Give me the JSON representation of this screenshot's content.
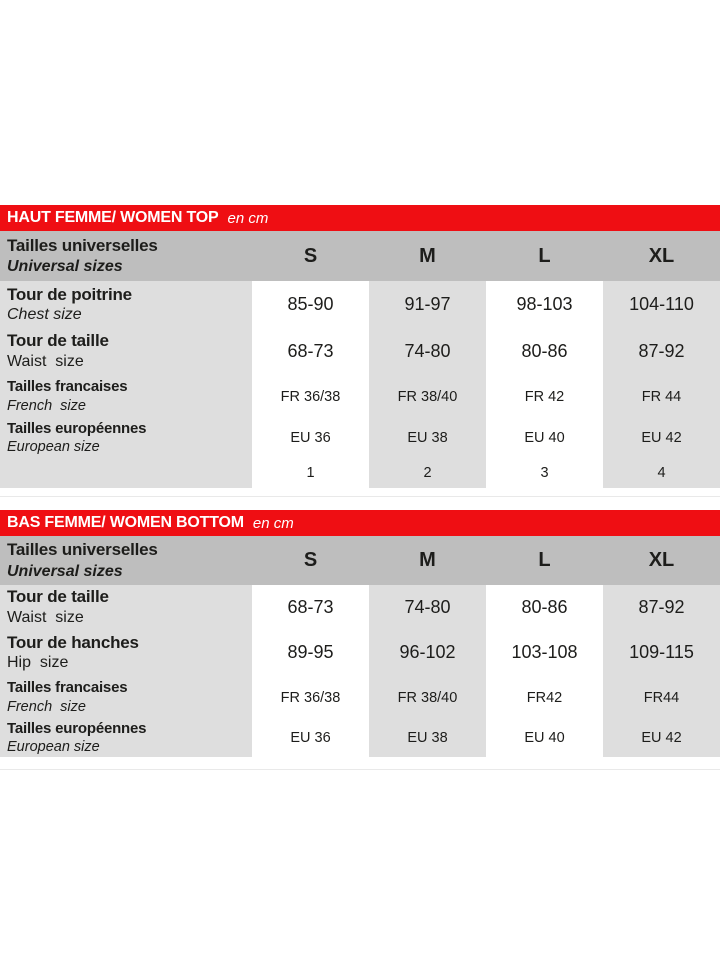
{
  "colors": {
    "red_bar": "#ef0e13",
    "header_gray": "#bebebe",
    "cell_gray": "#dedede",
    "text": "#1d1d1b"
  },
  "tables": [
    {
      "title": "HAUT FEMME/ WOMEN TOP",
      "unit": "en cm",
      "header": {
        "label_fr": "Tailles universelles",
        "label_en": "Universal sizes",
        "sizes": [
          "S",
          "M",
          "L",
          "XL"
        ]
      },
      "rows": [
        {
          "label_fr": "Tour de poitrine",
          "label_en": "Chest size",
          "values": [
            "85-90",
            "91-97",
            "98-103",
            "104-110"
          ]
        },
        {
          "label_fr": "Tour de taille",
          "label_en": "Waist  size",
          "values": [
            "68-73",
            "74-80",
            "80-86",
            "87-92"
          ]
        },
        {
          "label_fr": "Tailles francaises",
          "label_en": "French  size",
          "values": [
            "FR 36/38",
            "FR 38/40",
            "FR 42",
            "FR 44"
          ]
        },
        {
          "label_fr": "Tailles européennes",
          "label_en": "European size",
          "values": [
            "EU 36",
            "EU 38",
            "EU 40",
            "EU 42"
          ]
        },
        {
          "label_fr": "",
          "label_en": "",
          "values": [
            "1",
            "2",
            "3",
            "4"
          ]
        }
      ]
    },
    {
      "title": "BAS FEMME/ WOMEN BOTTOM",
      "unit": "en cm",
      "header": {
        "label_fr": "Tailles universelles",
        "label_en": "Universal sizes",
        "sizes": [
          "S",
          "M",
          "L",
          "XL"
        ]
      },
      "rows": [
        {
          "label_fr": "Tour de taille",
          "label_en": "Waist  size",
          "values": [
            "68-73",
            "74-80",
            "80-86",
            "87-92"
          ]
        },
        {
          "label_fr": "Tour de hanches",
          "label_en": "Hip  size",
          "values": [
            "89-95",
            "96-102",
            "103-108",
            "109-115"
          ]
        },
        {
          "label_fr": "Tailles francaises",
          "label_en": "French  size",
          "values": [
            "FR 36/38",
            "FR 38/40",
            "FR42",
            "FR44"
          ]
        },
        {
          "label_fr": "Tailles européennes",
          "label_en": "European size",
          "values": [
            "EU 36",
            "EU 38",
            "EU 40",
            "EU 42"
          ]
        }
      ]
    }
  ]
}
